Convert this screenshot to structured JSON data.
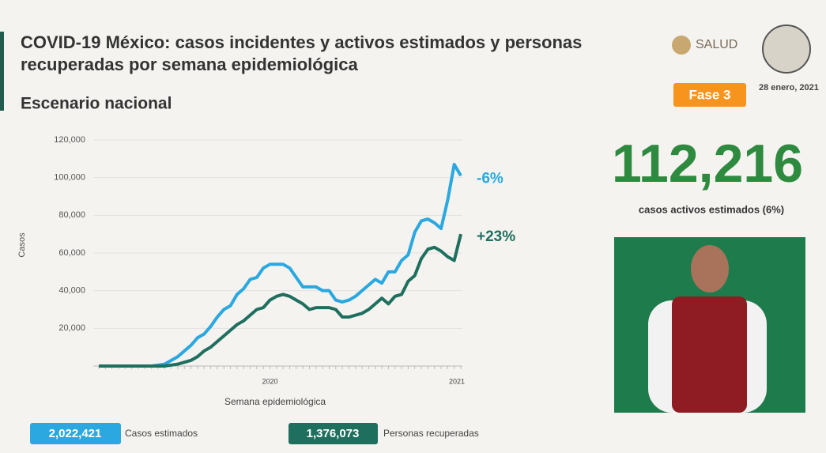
{
  "header": {
    "title": "COVID-19 México: casos incidentes y activos estimados y personas recuperadas por semana epidemiológica",
    "subtitle": "Escenario nacional",
    "logo": "SALUD",
    "badge": "Fase 3",
    "date": "28 enero, 2021"
  },
  "summary": {
    "value": "112,216",
    "caption": "casos activos estimados (6%)"
  },
  "chart_data": {
    "type": "line",
    "ylabel": "Casos",
    "xlabel": "Semana epidemiológica",
    "categories": [
      null,
      null,
      null,
      null,
      null,
      null,
      null,
      null,
      null,
      null,
      null,
      null,
      null,
      null,
      null,
      null,
      null,
      null,
      null,
      null,
      null,
      null,
      null,
      null,
      null,
      null,
      "2020",
      null,
      null,
      null,
      null,
      null,
      null,
      null,
      null,
      null,
      null,
      null,
      null,
      null,
      null,
      null,
      null,
      null,
      null,
      null,
      null,
      null,
      null,
      null,
      null,
      null,
      null,
      null,
      null,
      "2021"
    ],
    "ylim": [
      0,
      120000
    ],
    "yticks": [
      {
        "value": 20000,
        "label": "20,000"
      },
      {
        "value": 40000,
        "label": "40,000"
      },
      {
        "value": 60000,
        "label": "60,000"
      },
      {
        "value": 80000,
        "label": "80,000"
      },
      {
        "value": 100000,
        "label": "100,000"
      },
      {
        "value": 120000,
        "label": "120,000"
      }
    ],
    "grid": true,
    "series": [
      {
        "name": "Casos estimados",
        "total": "2,022,421",
        "color": "#2aa8df",
        "annotation": "-6%",
        "values": [
          0,
          0,
          0,
          0,
          0,
          0,
          0,
          0,
          0,
          500,
          1000,
          3000,
          5000,
          8000,
          11000,
          15000,
          17000,
          21000,
          26000,
          30000,
          32000,
          38000,
          41000,
          46000,
          47000,
          52000,
          54000,
          54000,
          54000,
          52000,
          47000,
          42000,
          42000,
          42000,
          40000,
          40000,
          35000,
          34000,
          35000,
          37000,
          40000,
          43000,
          46000,
          44000,
          50000,
          50000,
          56000,
          59000,
          71000,
          77000,
          78000,
          76000,
          73000,
          88000,
          107000,
          101000
        ]
      },
      {
        "name": "Personas recuperadas",
        "total": "1,376,073",
        "color": "#1f6f5e",
        "annotation": "+23%",
        "values": [
          0,
          0,
          0,
          0,
          0,
          0,
          0,
          0,
          0,
          0,
          0,
          500,
          1000,
          2000,
          3000,
          5000,
          8000,
          10000,
          13000,
          16000,
          19000,
          22000,
          24000,
          27000,
          30000,
          31000,
          35000,
          37000,
          38000,
          37000,
          35000,
          33000,
          30000,
          31000,
          31000,
          31000,
          30000,
          26000,
          26000,
          27000,
          28000,
          30000,
          33000,
          36000,
          33000,
          37000,
          38000,
          45000,
          48000,
          57000,
          62000,
          63000,
          61000,
          58000,
          56000,
          70000
        ]
      }
    ]
  }
}
